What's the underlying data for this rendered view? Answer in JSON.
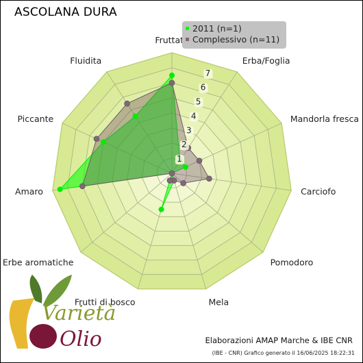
{
  "chart_data": {
    "type": "radar",
    "title": "ASCOLANA DURA",
    "axes": [
      "Fruttato",
      "Erba/Foglia",
      "Mandorla fresca",
      "Carciofo",
      "Pomodoro",
      "Mela",
      "Frutti di bosco",
      "Erbe aromatiche",
      "Amaro",
      "Piccante",
      "Fluidita"
    ],
    "r_ticks": [
      "1",
      "2",
      "3",
      "4",
      "5",
      "6",
      "7"
    ],
    "rmax": 8,
    "series": [
      {
        "name": "2011 (n=1)",
        "color": "#00ff00",
        "values": [
          6.5,
          1.0,
          1.0,
          0.0,
          0.0,
          0.5,
          2.5,
          0.0,
          7.5,
          5.0,
          4.5
        ]
      },
      {
        "name": "Complessivo (n=11)",
        "color": "#806878",
        "values": [
          6.0,
          2.0,
          2.0,
          2.5,
          1.0,
          0.5,
          0.5,
          0.0,
          6.0,
          5.5,
          5.5
        ]
      }
    ],
    "legend_position": "top-right"
  },
  "legend": {
    "items": [
      {
        "label": "2011 (n=1)",
        "color": "#00ff00"
      },
      {
        "label": "Complessivo (n=11)",
        "color": "#806878"
      }
    ]
  },
  "logo": {
    "line1": "Varietà",
    "line2": "Olio"
  },
  "footer": {
    "main": "Elaborazioni AMAP Marche & IBE CNR",
    "sub": "(IBE - CNR) Grafico generato il 16/06/2025 18:22:31"
  }
}
